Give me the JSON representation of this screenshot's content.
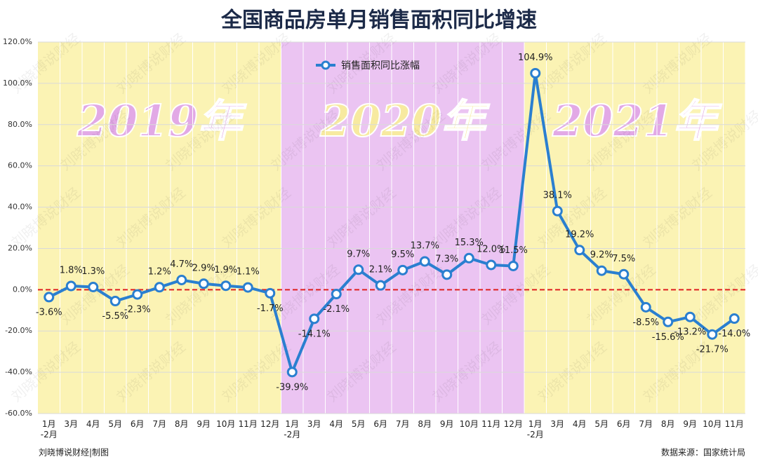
{
  "chart_data": {
    "type": "line",
    "title": "全国商品房单月销售面积同比增速",
    "categories": [
      "1月\n-2月",
      "3月",
      "4月",
      "5月",
      "6月",
      "7月",
      "8月",
      "9月",
      "10月",
      "11月",
      "12月",
      "1月\n-2月",
      "3月",
      "4月",
      "5月",
      "6月",
      "7月",
      "8月",
      "9月",
      "10月",
      "11月",
      "12月",
      "1月\n-2月",
      "3月",
      "4月",
      "5月",
      "6月",
      "7月",
      "8月",
      "9月",
      "10月",
      "11月"
    ],
    "series": [
      {
        "name": "销售面积同比涨幅",
        "color": "#2a7fd0",
        "values": [
          -3.6,
          1.8,
          1.3,
          -5.5,
          -2.3,
          1.2,
          4.7,
          2.9,
          1.9,
          1.1,
          -1.7,
          -39.9,
          -14.1,
          -2.1,
          9.7,
          2.1,
          9.5,
          13.7,
          7.3,
          15.3,
          12.0,
          11.5,
          104.9,
          38.1,
          19.2,
          9.2,
          7.5,
          -8.5,
          -15.6,
          -13.2,
          -21.7,
          -14.0
        ],
        "value_labels": [
          "-3.6%",
          "1.8%",
          "1.3%",
          "-5.5%",
          "-2.3%",
          "1.2%",
          "4.7%",
          "2.9%",
          "1.9%",
          "1.1%",
          "-1.7%",
          "-39.9%",
          "-14.1%",
          "-2.1%",
          "9.7%",
          "2.1%",
          "9.5%",
          "13.7%",
          "7.3%",
          "15.3%",
          "12.0%",
          "11.5%",
          "104.9%",
          "38.1%",
          "19.2%",
          "9.2%",
          "7.5%",
          "-8.5%",
          "-15.6%",
          "-13.2%",
          "-21.7%",
          "-14.0%"
        ]
      }
    ],
    "ylim": [
      -60,
      120
    ],
    "yticks": [
      {
        "value": -60,
        "label": "-60.0%"
      },
      {
        "value": -40,
        "label": "-40.0%"
      },
      {
        "value": -20,
        "label": "-20.0%"
      },
      {
        "value": 0,
        "label": "0.0%"
      },
      {
        "value": 20,
        "label": "20.0%"
      },
      {
        "value": 40,
        "label": "40.0%"
      },
      {
        "value": 60,
        "label": "60.0%"
      },
      {
        "value": 80,
        "label": "80.0%"
      },
      {
        "value": 100,
        "label": "100.0%"
      },
      {
        "value": 120,
        "label": "120.0%"
      }
    ],
    "grid": true,
    "zero_line_color": "#e02020",
    "periods": [
      {
        "label": "2019年",
        "color": "#fbf3b4",
        "text_color": "#e2a9e6"
      },
      {
        "label": "2020年",
        "color": "#ebc4f2",
        "text_color": "#f7eaa0"
      },
      {
        "label": "2021年",
        "color": "#fbf3b4",
        "text_color": "#e2a9e6"
      }
    ],
    "legend_position": "top",
    "watermark": "刘晓博说财经",
    "credit": "刘晓博说财经|制图",
    "source": "数据来源：国家统计局"
  }
}
